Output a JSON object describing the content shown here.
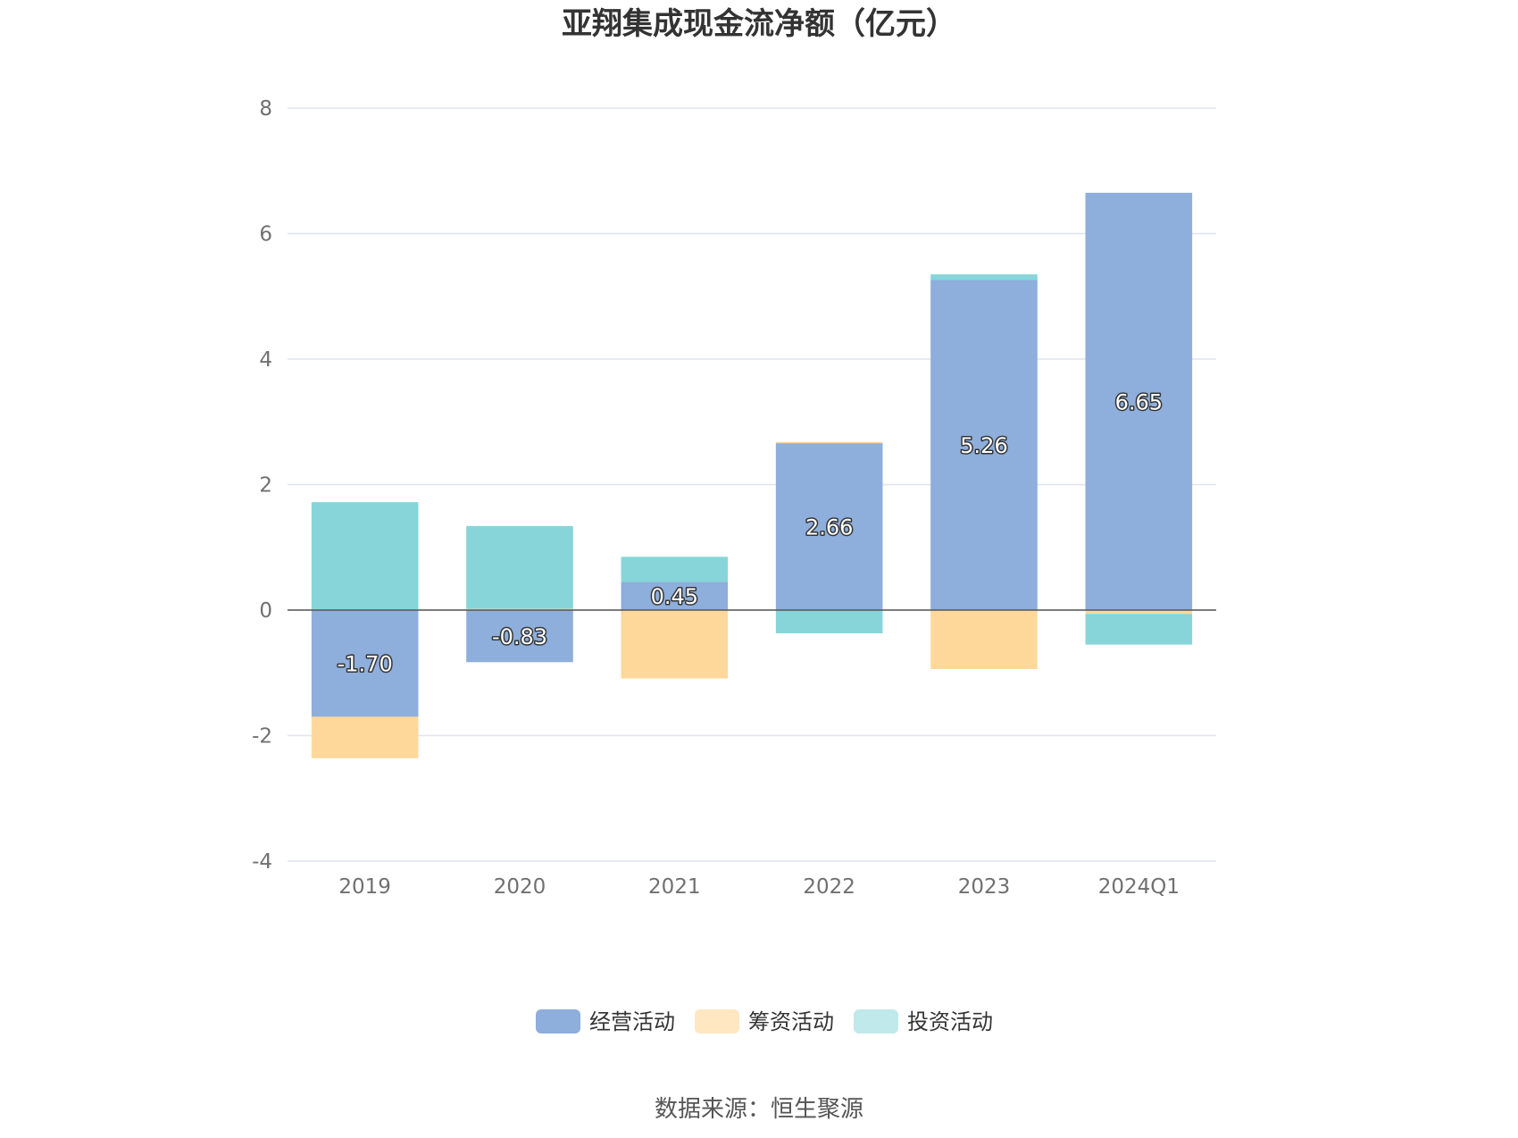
{
  "chart_data": {
    "type": "bar",
    "stacked": true,
    "title": "亚翔集成现金流净额（亿元）",
    "categories": [
      "2019",
      "2020",
      "2021",
      "2022",
      "2023",
      "2024Q1"
    ],
    "series": [
      {
        "name": "经营活动",
        "color": "#8eaedb",
        "values": [
          -1.7,
          -0.83,
          0.45,
          2.66,
          5.26,
          6.65
        ]
      },
      {
        "name": "筹资活动",
        "color": "#fed89b",
        "values": [
          -0.66,
          0.02,
          -1.09,
          0.02,
          -0.94,
          -0.06
        ]
      },
      {
        "name": "投资活动",
        "color": "#87d5d9",
        "values": [
          1.72,
          1.32,
          0.4,
          -0.37,
          0.09,
          -0.49
        ]
      }
    ],
    "data_labels": [
      "-1.70",
      "-0.83",
      "0.45",
      "2.66",
      "5.26",
      "6.65"
    ],
    "yticks": [
      "8",
      "6",
      "4",
      "2",
      "0",
      "-2",
      "-4"
    ],
    "ylim": [
      -4,
      8
    ],
    "grid": true,
    "legend_position": "bottom",
    "legend_colors": [
      "#8eaedb",
      "#ffe7c2",
      "#c0e9eb"
    ]
  },
  "source": "数据来源：恒生聚源"
}
